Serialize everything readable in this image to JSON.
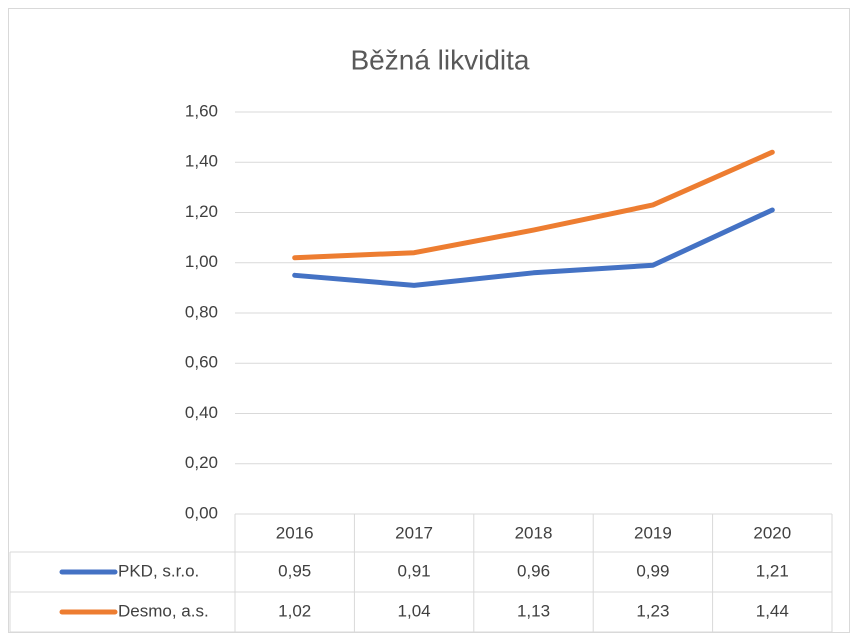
{
  "chart_data": {
    "type": "line",
    "title": "Běžná likvidita",
    "categories": [
      "2016",
      "2017",
      "2018",
      "2019",
      "2020"
    ],
    "series": [
      {
        "name": "PKD, s.r.o.",
        "color": "#4472c4",
        "values": [
          0.95,
          0.91,
          0.96,
          0.99,
          1.21
        ],
        "value_labels": [
          "0,95",
          "0,91",
          "0,96",
          "0,99",
          "1,21"
        ]
      },
      {
        "name": "Desmo, a.s.",
        "color": "#ed7d31",
        "values": [
          1.02,
          1.04,
          1.13,
          1.23,
          1.44
        ],
        "value_labels": [
          "1,02",
          "1,04",
          "1,13",
          "1,23",
          "1,44"
        ]
      }
    ],
    "ylim": [
      0,
      1.6
    ],
    "yticks": [
      {
        "value": 0,
        "label": "0,00"
      },
      {
        "value": 0.2,
        "label": "0,20"
      },
      {
        "value": 0.4,
        "label": "0,40"
      },
      {
        "value": 0.6,
        "label": "0,60"
      },
      {
        "value": 0.8,
        "label": "0,80"
      },
      {
        "value": 1.0,
        "label": "1,00"
      },
      {
        "value": 1.2,
        "label": "1,20"
      },
      {
        "value": 1.4,
        "label": "1,40"
      },
      {
        "value": 1.6,
        "label": "1,60"
      }
    ],
    "grid": true,
    "data_table": true
  }
}
